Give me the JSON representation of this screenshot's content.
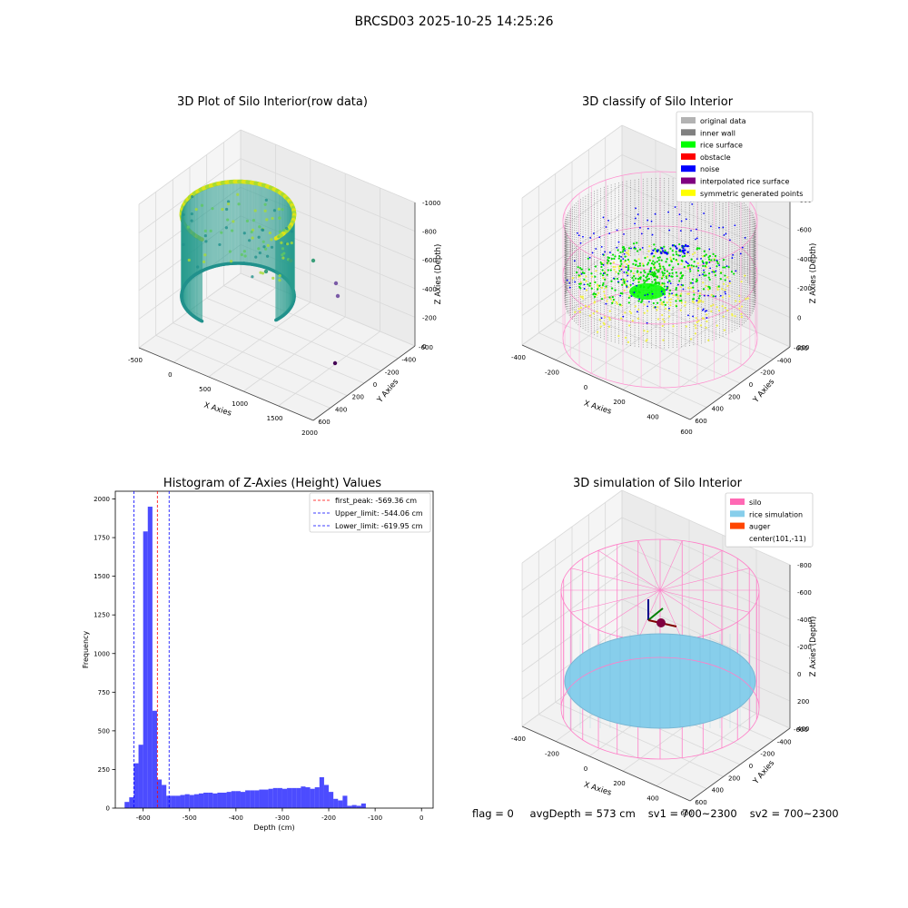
{
  "suptitle": "BRCSD03 2025-10-25 14:25:26",
  "panels": {
    "raw": {
      "title": "3D Plot of Silo Interior(row data)",
      "xlabel": "X Axies",
      "ylabel": "Y Axies",
      "zlabel": "Z Axies (Depth)",
      "xticks": [
        "-500",
        "0",
        "500",
        "1000",
        "1500",
        "2000"
      ],
      "yticks": [
        "600",
        "400",
        "200",
        "0",
        "-200",
        "-400",
        "-600"
      ],
      "zticks": [
        "0",
        "-200",
        "-400",
        "-600",
        "-800",
        "-1000"
      ]
    },
    "classify": {
      "title": "3D classify of Silo Interior",
      "xlabel": "X Axies",
      "ylabel": "Y Axies",
      "zlabel": "Z Axies (Depth)",
      "xticks": [
        "-400",
        "-200",
        "0",
        "200",
        "400",
        "600"
      ],
      "yticks": [
        "600",
        "400",
        "200",
        "0",
        "-200",
        "-400",
        "-600"
      ],
      "zticks": [
        "200",
        "0",
        "-200",
        "-400",
        "-600",
        "-800"
      ],
      "legend": [
        {
          "label": "original data",
          "color": "#b3b3b3"
        },
        {
          "label": "inner wall",
          "color": "#808080"
        },
        {
          "label": "rice surface",
          "color": "#00ff00"
        },
        {
          "label": "obstacle",
          "color": "#ff0000"
        },
        {
          "label": "noise",
          "color": "#0000ff"
        },
        {
          "label": "interpolated rice surface",
          "color": "#800080"
        },
        {
          "label": "symmetric generated points",
          "color": "#ffff00"
        }
      ]
    },
    "simulation": {
      "title": "3D simulation of Silo Interior",
      "xlabel": "X Axies",
      "ylabel": "Y Axies",
      "zlabel": "Z Axies (Depth)",
      "xticks": [
        "-400",
        "-200",
        "0",
        "200",
        "400",
        "600"
      ],
      "yticks": [
        "600",
        "400",
        "200",
        "0",
        "-200",
        "-400",
        "-600"
      ],
      "zticks": [
        "400",
        "200",
        "0",
        "-200",
        "-400",
        "-600",
        "-800"
      ],
      "legend": [
        {
          "label": "silo",
          "color": "#ff69b4"
        },
        {
          "label": "rice simulation",
          "color": "#87ceeb"
        },
        {
          "label": "auger",
          "color": "#ff4500"
        },
        {
          "label": "center(101,-11)",
          "color": ""
        }
      ]
    }
  },
  "chart_data": {
    "type": "bar",
    "title": "Histogram of Z-Axies (Height) Values",
    "xlabel": "Depth (cm)",
    "ylabel": "Frequency",
    "xlim": [
      -660,
      25
    ],
    "ylim": [
      0,
      2050
    ],
    "xticks": [
      -600,
      -500,
      -400,
      -300,
      -200,
      -100,
      0
    ],
    "yticks": [
      0,
      250,
      500,
      750,
      1000,
      1250,
      1500,
      1750,
      2000
    ],
    "bin_width": 10,
    "bin_edges_start": -640,
    "values": [
      40,
      70,
      290,
      410,
      1790,
      1950,
      630,
      185,
      150,
      80,
      80,
      80,
      85,
      90,
      85,
      90,
      95,
      100,
      100,
      95,
      100,
      100,
      105,
      110,
      110,
      105,
      115,
      115,
      115,
      120,
      120,
      125,
      130,
      130,
      125,
      130,
      130,
      130,
      140,
      135,
      125,
      135,
      200,
      150,
      105,
      60,
      50,
      80,
      15,
      20,
      15,
      30
    ],
    "color": "#0000ff",
    "vlines": [
      {
        "label": "first_peak: -569.36 cm",
        "x": -569.36,
        "color": "#ff0000"
      },
      {
        "label": "Upper_limit: -544.06 cm",
        "x": -544.06,
        "color": "#0000ff"
      },
      {
        "label": "Lower_limit: -619.95 cm",
        "x": -619.95,
        "color": "#0000ff"
      }
    ]
  },
  "footer": {
    "flag": "flag = 0",
    "avg": "avgDepth = 573 cm",
    "sv1": "sv1 = 700~2300",
    "sv2": "sv2 = 700~2300"
  }
}
